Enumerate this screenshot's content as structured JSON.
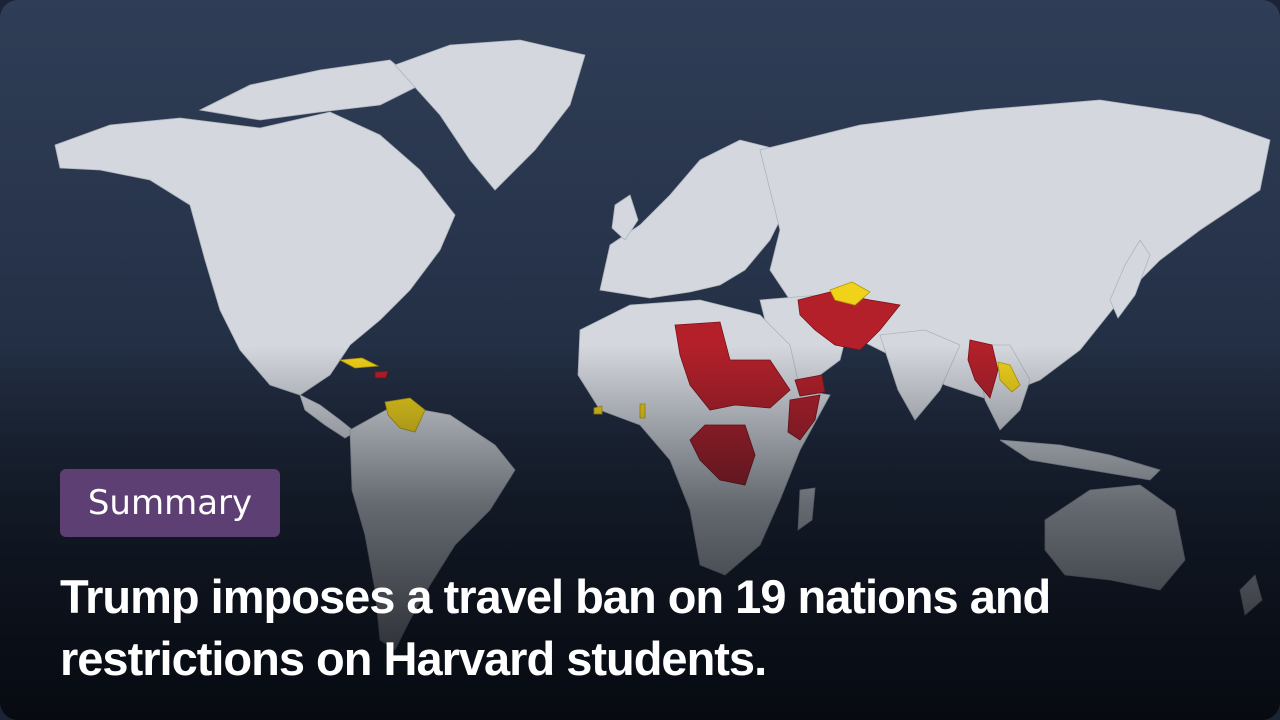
{
  "badge": {
    "label": "Summary"
  },
  "headline": "Trump imposes a travel ban on 19 nations and restrictions on Harvard students.",
  "map": {
    "colors": {
      "land": "#d4d8de",
      "full_ban": "#b3202a",
      "partial_restriction": "#f0d21a"
    },
    "full_ban_regions": [
      "Afghanistan",
      "Iran",
      "Libya",
      "Chad",
      "Sudan",
      "Yemen",
      "Somalia",
      "Eritrea",
      "Myanmar",
      "Republic of the Congo",
      "Equatorial Guinea",
      "Haiti"
    ],
    "partial_restriction_regions": [
      "Cuba",
      "Venezuela",
      "Turkmenistan",
      "Laos",
      "Sierra Leone",
      "Togo",
      "Burundi"
    ]
  }
}
